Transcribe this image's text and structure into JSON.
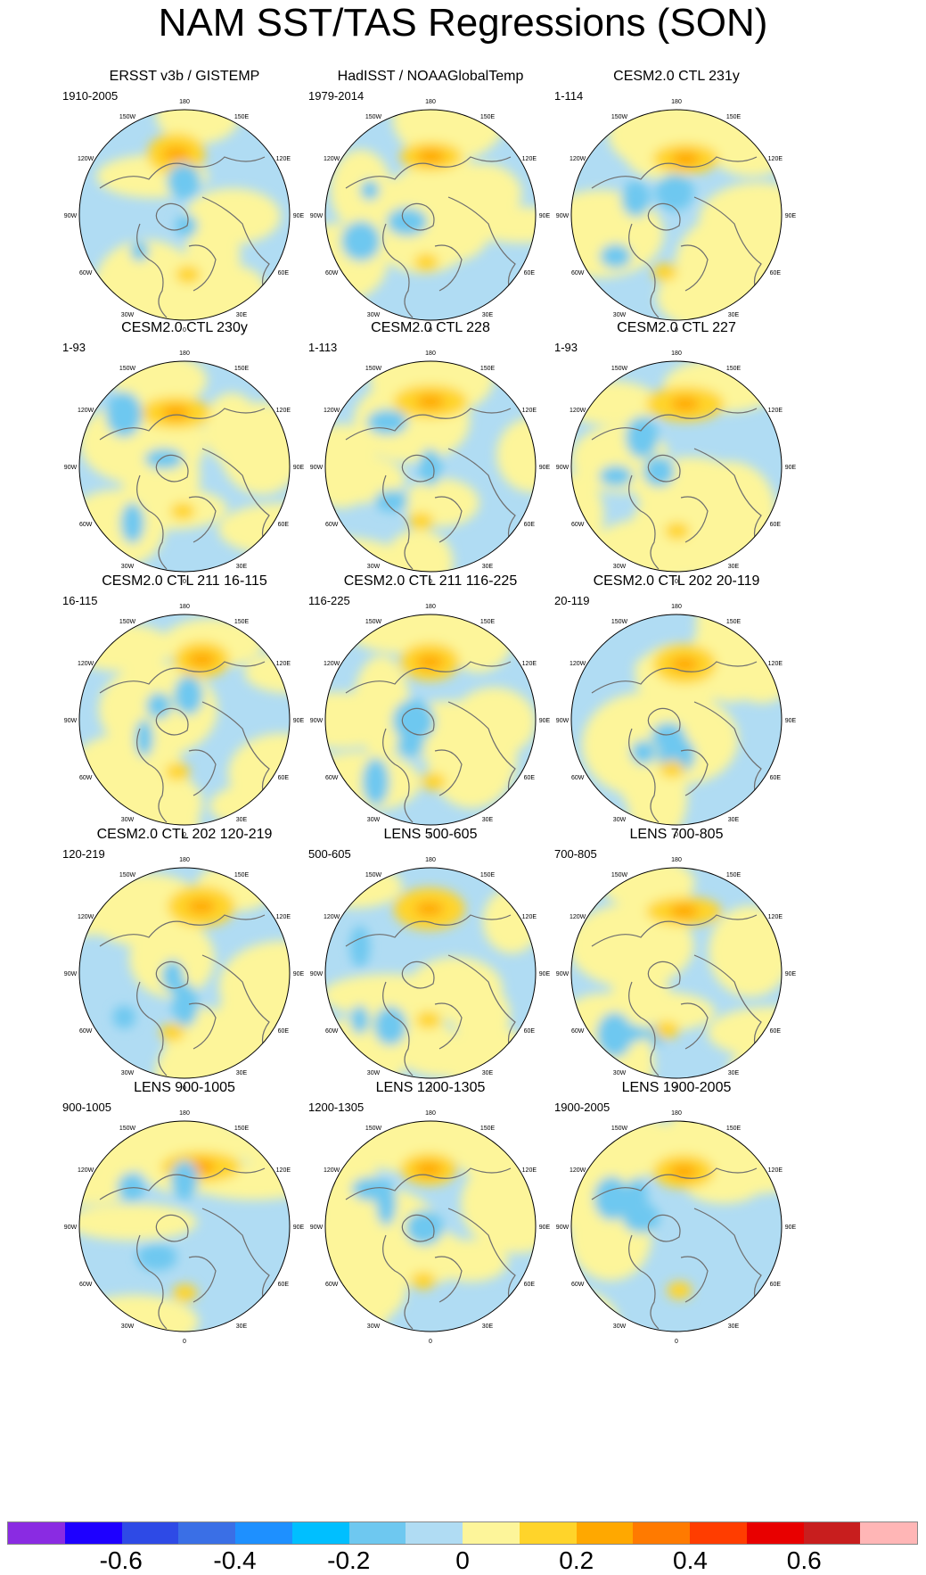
{
  "title": "NAM SST/TAS Regressions (SON)",
  "panels": [
    {
      "title": "ERSST v3b / GISTEMP",
      "period": "1910-2005"
    },
    {
      "title": "HadISST / NOAAGlobalTemp",
      "period": "1979-2014"
    },
    {
      "title": "CESM2.0 CTL 231y",
      "period": "1-114"
    },
    {
      "title": "CESM2.0 CTL 230y",
      "period": "1-93"
    },
    {
      "title": "CESM2.0 CTL 228",
      "period": "1-113"
    },
    {
      "title": "CESM2.0 CTL 227",
      "period": "1-93"
    },
    {
      "title": "CESM2.0 CTL 211 16-115",
      "period": "16-115"
    },
    {
      "title": "CESM2.0 CTL 211 116-225",
      "period": "116-225"
    },
    {
      "title": "CESM2.0 CTL 202 20-119",
      "period": "20-119"
    },
    {
      "title": "CESM2.0 CTL 202 120-219",
      "period": "120-219"
    },
    {
      "title": "LENS 500-605",
      "period": "500-605"
    },
    {
      "title": "LENS 700-805",
      "period": "700-805"
    },
    {
      "title": "LENS 900-1005",
      "period": "900-1005"
    },
    {
      "title": "LENS 1200-1305",
      "period": "1200-1305"
    },
    {
      "title": "LENS 1900-2005",
      "period": "1900-2005"
    }
  ],
  "longitude_labels": [
    "180",
    "150E",
    "120E",
    "90E",
    "60E",
    "30E",
    "0",
    "30W",
    "60W",
    "90W",
    "120W",
    "150W"
  ],
  "colorbar": {
    "colors": [
      "#8a2be2",
      "#1e00ff",
      "#2e4ae6",
      "#3a6fe6",
      "#1e90ff",
      "#00bfff",
      "#6ec8f0",
      "#b0dcf3",
      "#fdf59a",
      "#ffd42a",
      "#ffa800",
      "#ff7a00",
      "#ff3d00",
      "#e80000",
      "#c81e1e",
      "#ffb6b6"
    ],
    "tick_labels": [
      "-0.6",
      "-0.4",
      "-0.2",
      "0",
      "0.2",
      "0.4",
      "0.6"
    ]
  }
}
